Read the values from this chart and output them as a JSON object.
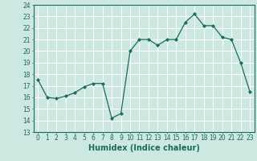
{
  "x": [
    0,
    1,
    2,
    3,
    4,
    5,
    6,
    7,
    8,
    9,
    10,
    11,
    12,
    13,
    14,
    15,
    16,
    17,
    18,
    19,
    20,
    21,
    22,
    23
  ],
  "y": [
    17.5,
    16.0,
    15.9,
    16.1,
    16.4,
    16.9,
    17.2,
    17.2,
    14.2,
    14.6,
    20.0,
    21.0,
    21.0,
    20.5,
    21.0,
    21.0,
    22.5,
    23.2,
    22.2,
    22.2,
    21.2,
    21.0,
    19.0,
    16.5
  ],
  "line_color": "#1a6b5a",
  "marker": "D",
  "marker_size": 2,
  "bg_color": "#cce8e0",
  "grid_color": "#ffffff",
  "xlabel": "Humidex (Indice chaleur)",
  "ylim": [
    13,
    24
  ],
  "xlim": [
    -0.5,
    23.5
  ],
  "yticks": [
    13,
    14,
    15,
    16,
    17,
    18,
    19,
    20,
    21,
    22,
    23,
    24
  ],
  "xticks": [
    0,
    1,
    2,
    3,
    4,
    5,
    6,
    7,
    8,
    9,
    10,
    11,
    12,
    13,
    14,
    15,
    16,
    17,
    18,
    19,
    20,
    21,
    22,
    23
  ],
  "xlabel_fontsize": 7,
  "tick_fontsize": 5.5,
  "linewidth": 0.9
}
